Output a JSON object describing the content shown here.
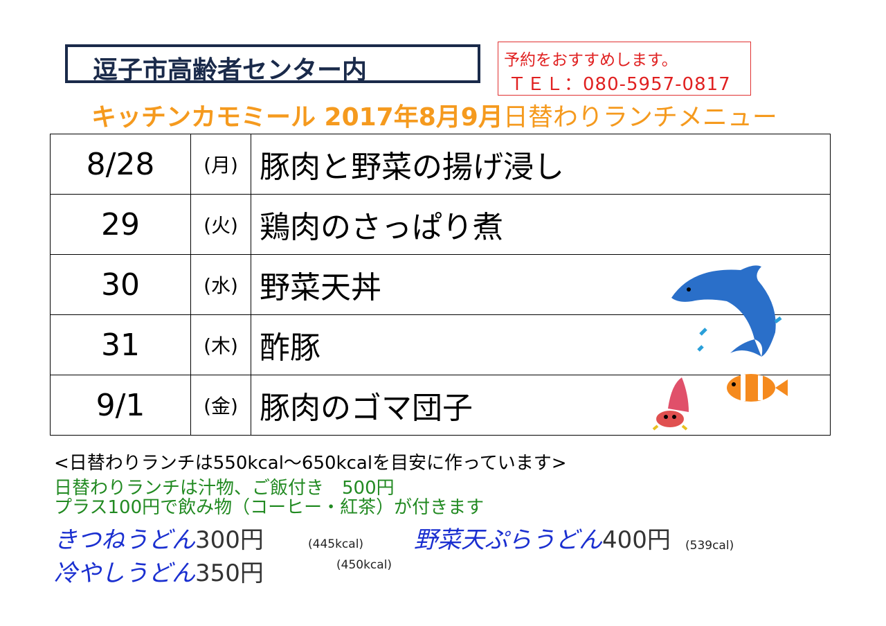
{
  "header": {
    "location": "逗子市高齢者センター内",
    "reserve": "予約をおすすめします。",
    "tel": "ＴＥＬ：080-5957-0817",
    "title_bold": "キッチンカモミール 2017年8月9月",
    "title_rest": "日替わりランチメニュー"
  },
  "menu": [
    {
      "date": "8/28",
      "dow": "(月)",
      "dish": "豚肉と野菜の揚げ浸し"
    },
    {
      "date": "29",
      "dow": "(火)",
      "dish": "鶏肉のさっぱり煮"
    },
    {
      "date": "30",
      "dow": "(水)",
      "dish": "野菜天丼"
    },
    {
      "date": "31",
      "dow": "(木)",
      "dish": "酢豚"
    },
    {
      "date": "9/1",
      "dow": "(金)",
      "dish": "豚肉のゴマ団子"
    }
  ],
  "notes": {
    "calorie": "<日替わりランチは550kcal～650kcalを目安に作っています>",
    "set": "日替わりランチは汁物、ご飯付き　500円",
    "drink": "プラス100円で飲み物（コーヒー・紅茶）が付きます"
  },
  "udon": [
    {
      "name": "きつねうどん",
      "price": "300円",
      "kcal": "(445kcal)"
    },
    {
      "name": "野菜天ぷらうどん",
      "price": "400円",
      "kcal": "(539cal)"
    },
    {
      "name": "冷やしうどん",
      "price": "350円",
      "kcal": "(450kcal)"
    }
  ],
  "colors": {
    "navy": "#1a2a4a",
    "orange": "#f59a1e",
    "red": "#e02020",
    "green": "#228a22",
    "blue": "#1a2fd0"
  }
}
